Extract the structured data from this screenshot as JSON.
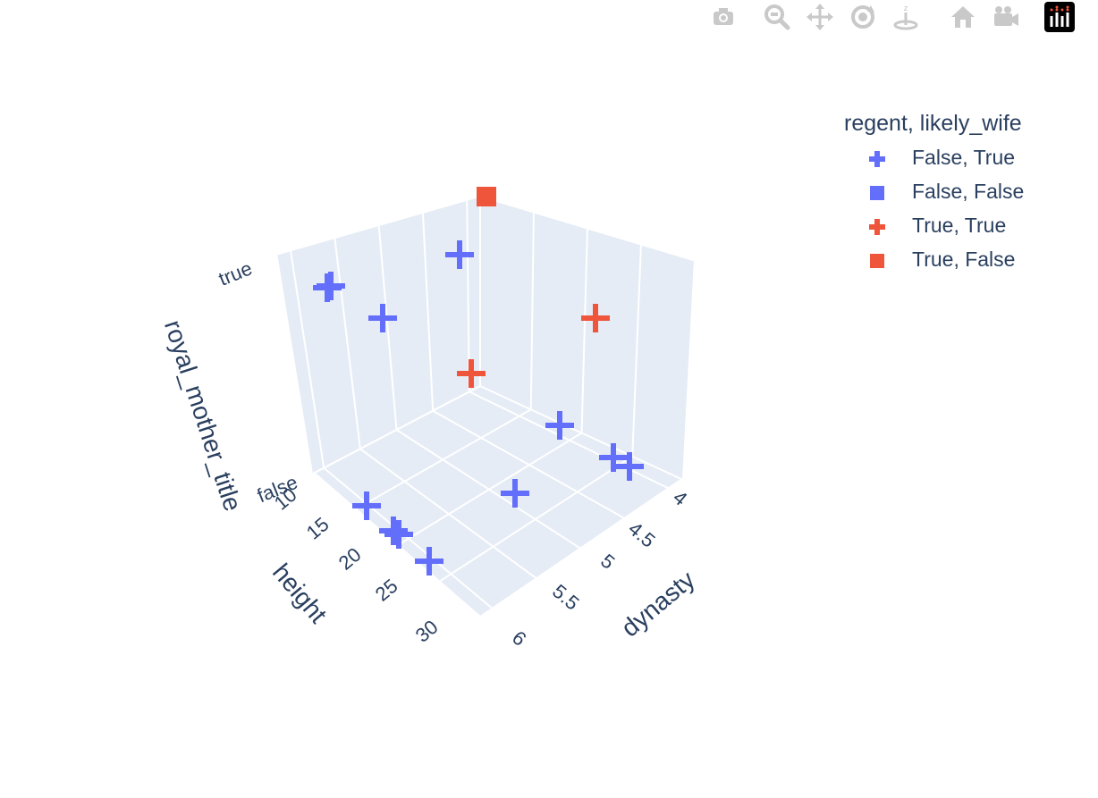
{
  "modebar": {
    "buttons": [
      {
        "name": "camera-icon",
        "title": "Download plot as a png"
      },
      {
        "name": "zoom-icon",
        "title": "Zoom"
      },
      {
        "name": "pan-icon",
        "title": "Pan"
      },
      {
        "name": "orbit-rotation-icon",
        "title": "Orbital rotation"
      },
      {
        "name": "turntable-rotation-icon",
        "title": "Turntable rotation"
      },
      {
        "name": "home-icon",
        "title": "Reset camera to default"
      },
      {
        "name": "camera-view-icon",
        "title": "Reset camera to last save"
      },
      {
        "name": "plotly-logo-icon",
        "title": "Produced with Plotly"
      }
    ],
    "icon_color": "#c9c9c9",
    "logo_bg": "#000000"
  },
  "chart_data": {
    "type": "scatter3d",
    "title": "",
    "axes": {
      "x": {
        "label": "dynasty",
        "ticks": [
          "4",
          "4.5",
          "5",
          "5.5",
          "6"
        ],
        "range": [
          4,
          6
        ]
      },
      "y": {
        "label": "height",
        "ticks": [
          "10",
          "15",
          "20",
          "25",
          "30"
        ],
        "range": [
          8,
          32
        ]
      },
      "z": {
        "label": "royal_mother_title",
        "ticks": [
          "false",
          "true"
        ],
        "range": [
          "false",
          "true"
        ]
      }
    },
    "grid": true,
    "background_color": "#e5ecf6",
    "legend": {
      "title": "regent, likely_wife",
      "placement": "top-right",
      "items": [
        {
          "label": "False, True",
          "color": "#636efa",
          "symbol": "cross"
        },
        {
          "label": "False, False",
          "color": "#636efa",
          "symbol": "square"
        },
        {
          "label": "True, True",
          "color": "#ef553b",
          "symbol": "cross"
        },
        {
          "label": "True, False",
          "color": "#ef553b",
          "symbol": "square"
        }
      ]
    },
    "series": [
      {
        "name": "False, True",
        "color": "#636efa",
        "symbol": "cross",
        "points": [
          {
            "x": 4.0,
            "y": 10,
            "z": "true"
          },
          {
            "x": 4.3,
            "y": 14,
            "z": "true"
          },
          {
            "x": 4.6,
            "y": 12,
            "z": "true"
          },
          {
            "x": 4.1,
            "y": 11,
            "z": "true"
          },
          {
            "x": 4.0,
            "y": 24,
            "z": "false"
          },
          {
            "x": 4.1,
            "y": 25,
            "z": "false"
          },
          {
            "x": 4.2,
            "y": 16,
            "z": "false"
          },
          {
            "x": 5.0,
            "y": 18,
            "z": "false"
          },
          {
            "x": 5.8,
            "y": 17,
            "z": "false"
          },
          {
            "x": 5.9,
            "y": 20,
            "z": "false"
          },
          {
            "x": 5.95,
            "y": 21,
            "z": "false"
          },
          {
            "x": 6.0,
            "y": 27,
            "z": "false"
          }
        ]
      },
      {
        "name": "True, True",
        "color": "#ef553b",
        "symbol": "cross",
        "points": [
          {
            "x": 4.0,
            "y": 25,
            "z": "true"
          },
          {
            "x": 4.5,
            "y": 10,
            "z": "true"
          }
        ]
      },
      {
        "name": "True, False",
        "color": "#ef553b",
        "symbol": "square",
        "points": [
          {
            "x": 4.05,
            "y": 9,
            "z": "true"
          }
        ]
      }
    ]
  }
}
